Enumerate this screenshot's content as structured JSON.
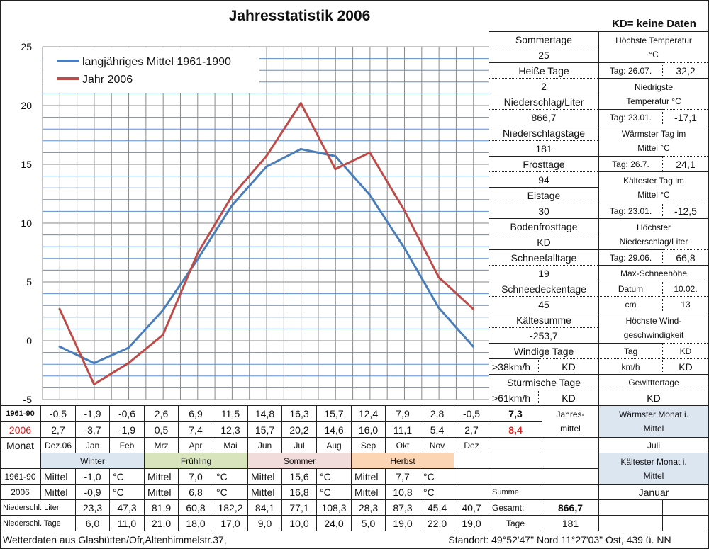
{
  "title": "Jahresstatistik 2006",
  "kd_note": "KD= keine Daten",
  "stats_left": [
    {
      "label": "Sommertage",
      "value": "25"
    },
    {
      "label": "Heiße Tage",
      "value": "2"
    },
    {
      "label": "Niederschlag/Liter",
      "value": "866,7"
    },
    {
      "label": "Niederschlagstage",
      "value": "181"
    },
    {
      "label": "Frosttage",
      "value": "94"
    },
    {
      "label": "Eistage",
      "value": "30"
    },
    {
      "label": "Bodenfrosttage",
      "value": "KD"
    },
    {
      "label": "Schneefalltage",
      "value": "19"
    },
    {
      "label": "Schneedeckentage",
      "value": "45"
    },
    {
      "label": "Kältesumme",
      "value": "-253,7"
    },
    {
      "label": "Windige Tage",
      "sub": ">38km/h",
      "value": "KD"
    },
    {
      "label": "Stürmische Tage",
      "sub": ">61km/h",
      "value": "KD"
    }
  ],
  "stats_right": {
    "max_temp": {
      "label": "Höchste Temperatur\n°C",
      "day": "Tag: 26.07.",
      "value": "32,2"
    },
    "min_temp": {
      "label": "Niedrigste\nTemperatur °C",
      "day": "Tag: 23.01.",
      "value": "-17,1"
    },
    "warmest_day": {
      "label": "Wärmster Tag im\nMittel °C",
      "day": "Tag: 26.7.",
      "value": "24,1"
    },
    "coldest_day": {
      "label": "Kältester Tag im\nMittel °C",
      "day": "Tag: 23.01.",
      "value": "-12,5"
    },
    "max_precip": {
      "label": "Höchster\nNiederschlag/Liter",
      "day": "Tag: 29.06.",
      "value": "66,8"
    },
    "max_snow": {
      "label": "Max-Schneehöhe",
      "date_label": "Datum",
      "date": "10.02.",
      "unit": "cm",
      "value": "13"
    },
    "max_wind": {
      "label": "Höchste Wind-\ngeschwindigkeit",
      "day_label": "Tag",
      "day": "KD",
      "unit": "km/h",
      "value": "KD"
    },
    "thunder": {
      "label": "Gewitttertage",
      "value": "KD"
    }
  },
  "chart_data": {
    "type": "line",
    "categories": [
      "Dez.06",
      "Jan",
      "Feb",
      "Mrz",
      "Apr",
      "Mai",
      "Jun",
      "Jul",
      "Aug",
      "Sep",
      "Okt",
      "Nov",
      "Dez"
    ],
    "series": [
      {
        "name": "langjähriges Mittel 1961-1990",
        "color": "#4a7ebb",
        "values": [
          -0.5,
          -1.9,
          -0.6,
          2.6,
          6.9,
          11.5,
          14.8,
          16.3,
          15.7,
          12.4,
          7.9,
          2.8,
          -0.5
        ]
      },
      {
        "name": "Jahr 2006",
        "color": "#be4b48",
        "values": [
          2.7,
          -3.7,
          -1.9,
          0.5,
          7.4,
          12.3,
          15.7,
          20.2,
          14.6,
          16.0,
          11.1,
          5.4,
          2.7
        ]
      }
    ],
    "ylim": [
      -5,
      25
    ],
    "yticks": [
      "-5",
      "0",
      "5",
      "10",
      "15",
      "20",
      "25"
    ],
    "grid": true,
    "legend": "top-left"
  },
  "table": {
    "row_1961": {
      "label": "1961-90",
      "values": [
        "-0,5",
        "-1,9",
        "-0,6",
        "2,6",
        "6,9",
        "11,5",
        "14,8",
        "16,3",
        "15,7",
        "12,4",
        "7,9",
        "2,8",
        "-0,5"
      ],
      "annual": "7,3"
    },
    "row_2006": {
      "label": "2006",
      "values": [
        "2,7",
        "-3,7",
        "-1,9",
        "0,5",
        "7,4",
        "12,3",
        "15,7",
        "20,2",
        "14,6",
        "16,0",
        "11,1",
        "5,4",
        "2,7"
      ],
      "annual": "8,4"
    },
    "annual_label": "Jahres-\nmittel",
    "month_label": "Monat",
    "months": [
      "Dez.06",
      "Jan",
      "Feb",
      "Mrz",
      "Apr",
      "Mai",
      "Jun",
      "Jul",
      "Aug",
      "Sep",
      "Okt",
      "Nov",
      "Dez"
    ],
    "seasons": [
      {
        "name": "Winter",
        "mean_label": "Mittel",
        "v1961": "-1,0",
        "v2006": "-0,9",
        "unit": "°C"
      },
      {
        "name": "Frühling",
        "mean_label": "Mittel",
        "v1961": "7,0",
        "v2006": "6,8",
        "unit": "°C"
      },
      {
        "name": "Sommer",
        "mean_label": "Mittel",
        "v1961": "15,6",
        "v2006": "16,8",
        "unit": "°C"
      },
      {
        "name": "Herbst",
        "mean_label": "Mittel",
        "v1961": "7,7",
        "v2006": "10,8",
        "unit": "°C"
      }
    ],
    "season_row_1961": "1961-90",
    "season_row_2006": "2006",
    "precip_liter": {
      "label": "Niederschl. Liter",
      "values": [
        "23,3",
        "47,3",
        "81,9",
        "60,8",
        "182,2",
        "84,1",
        "77,1",
        "108,3",
        "28,3",
        "87,3",
        "45,4",
        "40,7"
      ],
      "total_label": "Gesamt:",
      "total": "866,7"
    },
    "precip_days": {
      "label": "Niederschl. Tage",
      "values": [
        "6,0",
        "11,0",
        "21,0",
        "18,0",
        "17,0",
        "9,0",
        "10,0",
        "24,0",
        "5,0",
        "19,0",
        "22,0",
        "19,0"
      ],
      "total_label": "Tage",
      "total": "181"
    },
    "sum_label": "Summe",
    "warmest_month": {
      "label": "Wärmster Monat i.\nMittel",
      "value": "Juli"
    },
    "coldest_month": {
      "label": "Kältester Monat i.\nMittel",
      "value": "Januar"
    }
  },
  "footer": {
    "source": "Wetterdaten aus Glashütten/Ofr,Altenhimmelstr.37,",
    "location": "Standort:  49°52'47\" Nord    11°27'03\" Ost, 439 ü. NN"
  }
}
